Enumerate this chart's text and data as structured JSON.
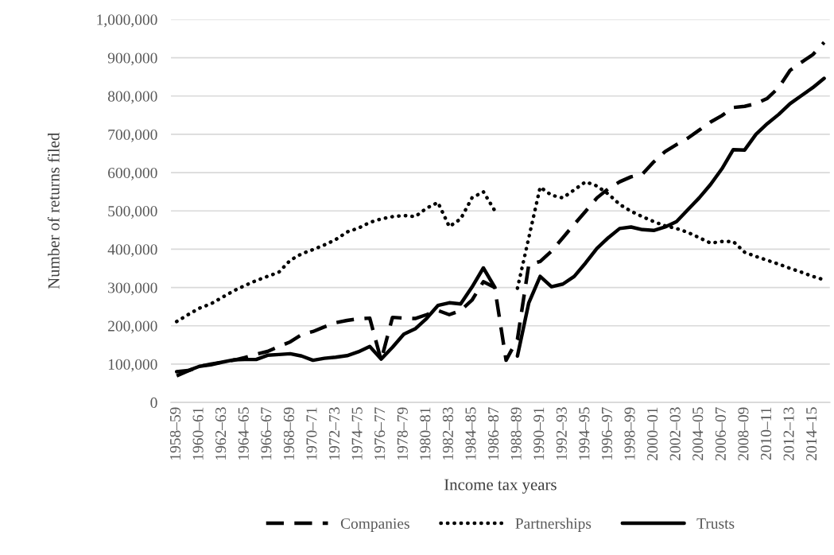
{
  "chart_data": {
    "type": "line",
    "xlabel": "Income tax years",
    "ylabel": "Number of returns filed",
    "categories": [
      "1958–59",
      null,
      "1960–61",
      null,
      "1962–63",
      null,
      "1964–65",
      null,
      "1966–67",
      null,
      "1968–69",
      null,
      "1970–71",
      null,
      "1972–73",
      null,
      "1974–75",
      null,
      "1976–77",
      null,
      "1978–79",
      null,
      "1980–81",
      null,
      "1982–83",
      null,
      "1984–85",
      null,
      "1986–87",
      null,
      "1988–89",
      null,
      "1990–91",
      null,
      "1992–93",
      null,
      "1994–95",
      null,
      "1996–97",
      null,
      "1998–99",
      null,
      "2000–01",
      null,
      "2002–03",
      null,
      "2004–05",
      null,
      "2006–07",
      null,
      "2008–09",
      null,
      "2010–11",
      null,
      "2012–13",
      null,
      "2014–15",
      null
    ],
    "series": [
      {
        "name": "Companies",
        "color": "#000000",
        "line_style": "dashed",
        "values": [
          69000,
          82000,
          94000,
          100000,
          105000,
          110000,
          117000,
          126000,
          133000,
          146000,
          158000,
          177000,
          185000,
          197000,
          208000,
          214000,
          218000,
          220000,
          110000,
          222000,
          220000,
          219000,
          229000,
          240000,
          229000,
          240000,
          267000,
          315000,
          300000,
          110000,
          165000,
          360000,
          368000,
          395000,
          430000,
          465000,
          499000,
          534000,
          558000,
          576000,
          589000,
          596000,
          628000,
          655000,
          673000,
          690000,
          711000,
          732000,
          749000,
          770000,
          773000,
          780000,
          794000,
          822000,
          867000,
          888000,
          908000,
          940000
        ]
      },
      {
        "name": "Partnerships",
        "color": "#000000",
        "line_style": "dotted",
        "values": [
          211000,
          229000,
          246000,
          257000,
          274000,
          291000,
          305000,
          318000,
          329000,
          340000,
          371000,
          388000,
          399000,
          411000,
          425000,
          445000,
          455000,
          470000,
          479000,
          485000,
          488000,
          485000,
          507000,
          522000,
          459000,
          479000,
          534000,
          550000,
          501000,
          null,
          298000,
          430000,
          562000,
          541000,
          534000,
          555000,
          576000,
          565000,
          544000,
          517000,
          499000,
          485000,
          472000,
          461000,
          454000,
          444000,
          430000,
          416000,
          420000,
          420000,
          392000,
          381000,
          371000,
          361000,
          350000,
          340000,
          329000,
          320000
        ]
      },
      {
        "name": "Trusts",
        "color": "#000000",
        "line_style": "solid",
        "values": [
          80000,
          83000,
          94000,
          98000,
          105000,
          111000,
          112000,
          112000,
          123000,
          125000,
          127000,
          121000,
          110000,
          115000,
          118000,
          122000,
          132000,
          146000,
          113000,
          144000,
          178000,
          192000,
          219000,
          253000,
          260000,
          257000,
          301000,
          351000,
          301000,
          null,
          121000,
          260000,
          329000,
          302000,
          309000,
          329000,
          364000,
          402000,
          430000,
          454000,
          458000,
          451000,
          449000,
          458000,
          472000,
          503000,
          534000,
          569000,
          610000,
          660000,
          659000,
          700000,
          728000,
          752000,
          780000,
          801000,
          822000,
          846000
        ]
      }
    ],
    "ylim": [
      0,
      1000000
    ],
    "yticks": [
      0,
      {
        "value": 100000,
        "label": "100,000"
      },
      {
        "value": 200000,
        "label": "200,000"
      },
      {
        "value": 300000,
        "label": "300,000"
      },
      {
        "value": 400000,
        "label": "400,000"
      },
      {
        "value": 500000,
        "label": "500,000"
      },
      {
        "value": 600000,
        "label": "600,000"
      },
      {
        "value": 700000,
        "label": "700,000"
      },
      {
        "value": 800000,
        "label": "800,000"
      },
      {
        "value": 900000,
        "label": "900,000"
      },
      {
        "value": 1000000,
        "label": "1,000,000"
      }
    ],
    "grid": "y",
    "legend": "bottom"
  }
}
